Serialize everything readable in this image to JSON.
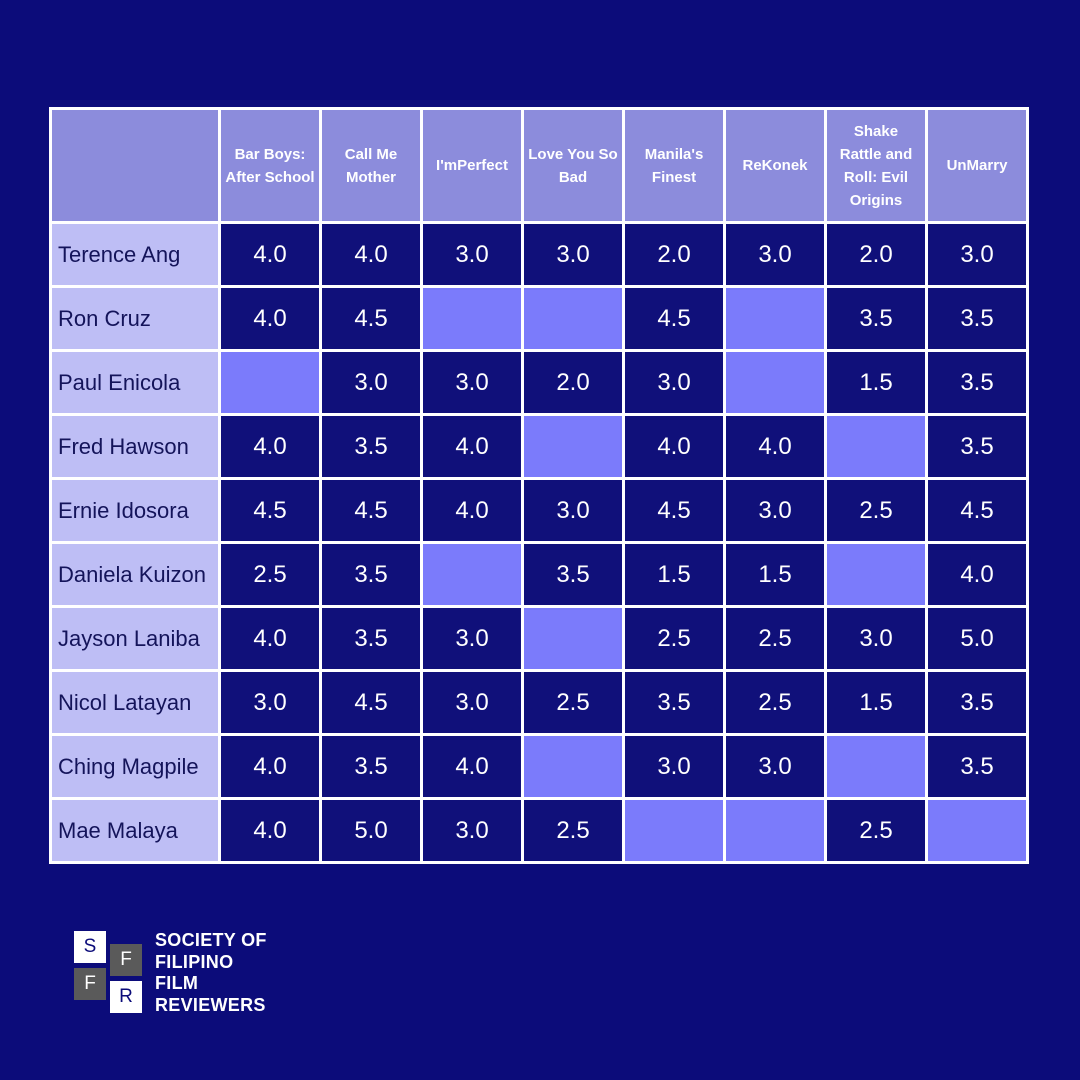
{
  "chart_data": {
    "type": "table",
    "columns": [
      "Bar Boys: After School",
      "Call Me Mother",
      "I'mPerfect",
      "Love You So Bad",
      "Manila's Finest",
      "ReKonek",
      "Shake Rattle and Roll: Evil Origins",
      "UnMarry"
    ],
    "rows": [
      {
        "name": "Terence Ang",
        "values": [
          "4.0",
          "4.0",
          "3.0",
          "3.0",
          "2.0",
          "3.0",
          "2.0",
          "3.0"
        ]
      },
      {
        "name": "Ron Cruz",
        "values": [
          "4.0",
          "4.5",
          "",
          "",
          "4.5",
          "",
          "3.5",
          "3.5"
        ]
      },
      {
        "name": "Paul Enicola",
        "values": [
          "",
          "3.0",
          "3.0",
          "2.0",
          "3.0",
          "",
          "1.5",
          "3.5"
        ]
      },
      {
        "name": "Fred Hawson",
        "values": [
          "4.0",
          "3.5",
          "4.0",
          "",
          "4.0",
          "4.0",
          "",
          "3.5"
        ]
      },
      {
        "name": "Ernie Idosora",
        "values": [
          "4.5",
          "4.5",
          "4.0",
          "3.0",
          "4.5",
          "3.0",
          "2.5",
          "4.5"
        ]
      },
      {
        "name": "Daniela Kuizon",
        "values": [
          "2.5",
          "3.5",
          "",
          "3.5",
          "1.5",
          "1.5",
          "",
          "4.0"
        ]
      },
      {
        "name": "Jayson Laniba",
        "values": [
          "4.0",
          "3.5",
          "3.0",
          "",
          "2.5",
          "2.5",
          "3.0",
          "5.0"
        ]
      },
      {
        "name": "Nicol Latayan",
        "values": [
          "3.0",
          "4.5",
          "3.0",
          "2.5",
          "3.5",
          "2.5",
          "1.5",
          "3.5"
        ]
      },
      {
        "name": "Ching Magpile",
        "values": [
          "4.0",
          "3.5",
          "4.0",
          "",
          "3.0",
          "3.0",
          "",
          "3.5"
        ]
      },
      {
        "name": "Mae Malaya",
        "values": [
          "4.0",
          "5.0",
          "3.0",
          "2.5",
          "",
          "",
          "2.5",
          ""
        ]
      }
    ]
  },
  "logo": {
    "mark_letters": [
      "S",
      "F",
      "F",
      "R"
    ],
    "text_lines": [
      "SOCIETY OF",
      "FILIPINO",
      "FILM",
      "REVIEWERS"
    ]
  },
  "colors": {
    "background": "#0c0c7a",
    "header_cell": "#8c8cdc",
    "name_cell": "#bebef5",
    "score_cell": "#10107a",
    "empty_cell": "#7b7bfb"
  }
}
